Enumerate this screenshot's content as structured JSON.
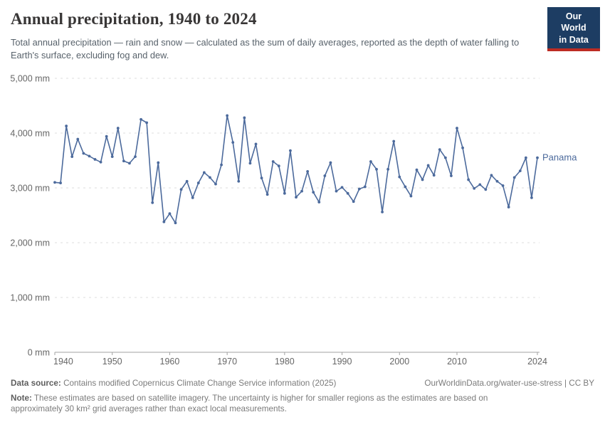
{
  "header": {
    "title": "Annual precipitation, 1940 to 2024",
    "subtitle": "Total annual precipitation — rain and snow — calculated as the sum of daily averages, reported as the depth of water falling to Earth's surface, excluding fog and dew."
  },
  "logo": {
    "line1": "Our World",
    "line2": "in Data"
  },
  "chart_data": {
    "type": "line",
    "title": "Annual precipitation, 1940 to 2024",
    "unit": "mm",
    "entity_label": "Panama",
    "xlim": [
      1940,
      2024
    ],
    "ylim": [
      0,
      5000
    ],
    "grid": "horizontal-dashed",
    "legend_position": "end-of-line-label",
    "x": [
      1940,
      1941,
      1942,
      1943,
      1944,
      1945,
      1946,
      1947,
      1948,
      1949,
      1950,
      1951,
      1952,
      1953,
      1954,
      1955,
      1956,
      1957,
      1958,
      1959,
      1960,
      1961,
      1962,
      1963,
      1964,
      1965,
      1966,
      1967,
      1968,
      1969,
      1970,
      1971,
      1972,
      1973,
      1974,
      1975,
      1976,
      1977,
      1978,
      1979,
      1980,
      1981,
      1982,
      1983,
      1984,
      1985,
      1986,
      1987,
      1988,
      1989,
      1990,
      1991,
      1992,
      1993,
      1994,
      1995,
      1996,
      1997,
      1998,
      1999,
      2000,
      2001,
      2002,
      2003,
      2004,
      2005,
      2006,
      2007,
      2008,
      2009,
      2010,
      2011,
      2012,
      2013,
      2014,
      2015,
      2016,
      2017,
      2018,
      2019,
      2020,
      2021,
      2022,
      2023,
      2024
    ],
    "series": [
      {
        "name": "Panama",
        "color": "#4C6A9C",
        "values": [
          3100,
          3090,
          4130,
          3570,
          3890,
          3630,
          3580,
          3520,
          3470,
          3940,
          3570,
          4090,
          3490,
          3450,
          3570,
          4250,
          4190,
          2730,
          3460,
          2380,
          2530,
          2360,
          2970,
          3120,
          2820,
          3090,
          3280,
          3190,
          3070,
          3420,
          4320,
          3830,
          3120,
          4280,
          3450,
          3800,
          3180,
          2880,
          3480,
          3400,
          2900,
          3680,
          2830,
          2940,
          3300,
          2920,
          2740,
          3220,
          3460,
          2940,
          3010,
          2900,
          2750,
          2980,
          3020,
          3480,
          3340,
          2560,
          3340,
          3850,
          3200,
          3020,
          2850,
          3330,
          3150,
          3410,
          3230,
          3700,
          3550,
          3220,
          4090,
          3730,
          3150,
          2990,
          3060,
          2970,
          3230,
          3120,
          3040,
          2650,
          3190,
          3310,
          3550,
          2820,
          3550
        ]
      }
    ],
    "y_ticks": [
      {
        "value": 0,
        "label": "0 mm"
      },
      {
        "value": 1000,
        "label": "1,000 mm"
      },
      {
        "value": 2000,
        "label": "2,000 mm"
      },
      {
        "value": 3000,
        "label": "3,000 mm"
      },
      {
        "value": 4000,
        "label": "4,000 mm"
      },
      {
        "value": 5000,
        "label": "5,000 mm"
      }
    ],
    "x_ticks": [
      {
        "value": 1940,
        "label": "1940"
      },
      {
        "value": 1950,
        "label": "1950"
      },
      {
        "value": 1960,
        "label": "1960"
      },
      {
        "value": 1970,
        "label": "1970"
      },
      {
        "value": 1980,
        "label": "1980"
      },
      {
        "value": 1990,
        "label": "1990"
      },
      {
        "value": 2000,
        "label": "2000"
      },
      {
        "value": 2010,
        "label": "2010"
      },
      {
        "value": 2024,
        "label": "2024"
      }
    ]
  },
  "footer": {
    "data_source_label": "Data source:",
    "data_source": "Contains modified Copernicus Climate Change Service information (2025)",
    "link": "OurWorldinData.org/water-use-stress | CC BY",
    "note_label": "Note:",
    "note": "These estimates are based on satellite imagery. The uncertainty is higher for smaller regions as the estimates are based on approximately 30 km² grid averages rather than exact local measurements."
  },
  "colors": {
    "line": "#4C6A9C",
    "grid": "#dedede",
    "axis": "#a1a1a1",
    "tick_text": "#666666",
    "logo_bg": "#1d3d63",
    "logo_bar": "#bd2c23"
  }
}
